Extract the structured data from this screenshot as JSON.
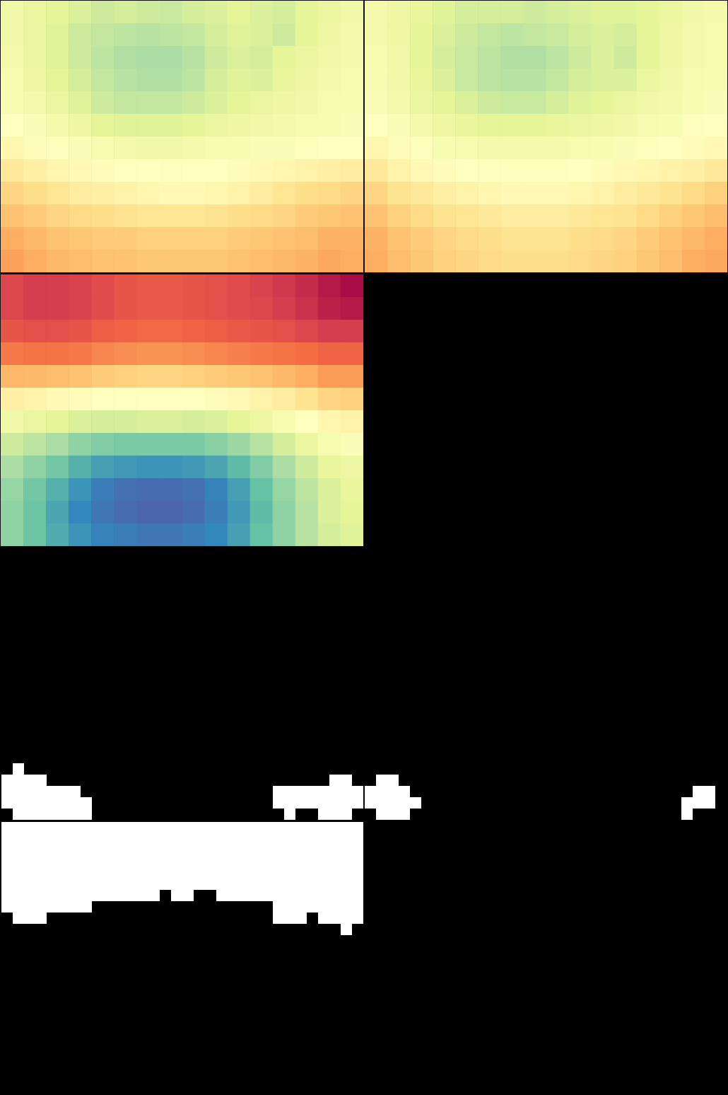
{
  "chart_data": [
    {
      "type": "heatmap",
      "tick_labels": false,
      "color_range": [
        0,
        1
      ],
      "cells": [
        [
          0.56,
          0.58,
          0.6,
          0.62,
          0.64,
          0.63,
          0.64,
          0.65,
          0.63,
          0.62,
          0.6,
          0.62,
          0.63,
          0.6,
          0.58,
          0.56
        ],
        [
          0.56,
          0.58,
          0.61,
          0.64,
          0.66,
          0.67,
          0.68,
          0.67,
          0.66,
          0.63,
          0.61,
          0.62,
          0.64,
          0.6,
          0.57,
          0.55
        ],
        [
          0.55,
          0.58,
          0.61,
          0.64,
          0.67,
          0.69,
          0.7,
          0.7,
          0.68,
          0.64,
          0.62,
          0.63,
          0.6,
          0.58,
          0.56,
          0.55
        ],
        [
          0.54,
          0.57,
          0.6,
          0.63,
          0.66,
          0.68,
          0.69,
          0.69,
          0.67,
          0.63,
          0.61,
          0.62,
          0.59,
          0.57,
          0.55,
          0.54
        ],
        [
          0.53,
          0.55,
          0.58,
          0.61,
          0.64,
          0.66,
          0.66,
          0.66,
          0.64,
          0.62,
          0.6,
          0.58,
          0.57,
          0.56,
          0.54,
          0.53
        ],
        [
          0.5,
          0.52,
          0.55,
          0.57,
          0.6,
          0.61,
          0.61,
          0.61,
          0.6,
          0.58,
          0.57,
          0.56,
          0.55,
          0.54,
          0.53,
          0.52
        ],
        [
          0.47,
          0.49,
          0.51,
          0.52,
          0.54,
          0.55,
          0.56,
          0.56,
          0.55,
          0.54,
          0.53,
          0.52,
          0.52,
          0.51,
          0.5,
          0.5
        ],
        [
          0.43,
          0.45,
          0.47,
          0.48,
          0.49,
          0.5,
          0.5,
          0.51,
          0.5,
          0.5,
          0.49,
          0.48,
          0.47,
          0.46,
          0.45,
          0.44
        ],
        [
          0.38,
          0.4,
          0.42,
          0.44,
          0.45,
          0.46,
          0.47,
          0.48,
          0.48,
          0.47,
          0.46,
          0.44,
          0.42,
          0.4,
          0.39,
          0.38
        ],
        [
          0.34,
          0.36,
          0.38,
          0.39,
          0.4,
          0.41,
          0.42,
          0.42,
          0.42,
          0.41,
          0.4,
          0.39,
          0.38,
          0.36,
          0.35,
          0.34
        ],
        [
          0.3,
          0.32,
          0.34,
          0.35,
          0.36,
          0.36,
          0.37,
          0.37,
          0.37,
          0.37,
          0.36,
          0.35,
          0.34,
          0.33,
          0.31,
          0.31
        ],
        [
          0.28,
          0.3,
          0.32,
          0.33,
          0.34,
          0.34,
          0.35,
          0.35,
          0.35,
          0.35,
          0.34,
          0.33,
          0.32,
          0.31,
          0.29,
          0.3
        ]
      ]
    },
    {
      "type": "heatmap",
      "tick_labels": false,
      "color_range": [
        0,
        1
      ],
      "cells": [
        [
          0.55,
          0.57,
          0.59,
          0.61,
          0.63,
          0.63,
          0.63,
          0.64,
          0.63,
          0.62,
          0.61,
          0.61,
          0.6,
          0.58,
          0.56,
          0.55
        ],
        [
          0.55,
          0.57,
          0.6,
          0.62,
          0.64,
          0.66,
          0.67,
          0.66,
          0.65,
          0.63,
          0.62,
          0.63,
          0.6,
          0.57,
          0.55,
          0.54
        ],
        [
          0.54,
          0.56,
          0.6,
          0.63,
          0.65,
          0.67,
          0.69,
          0.69,
          0.67,
          0.64,
          0.62,
          0.64,
          0.6,
          0.57,
          0.55,
          0.54
        ],
        [
          0.53,
          0.56,
          0.59,
          0.62,
          0.65,
          0.67,
          0.68,
          0.68,
          0.66,
          0.63,
          0.62,
          0.62,
          0.58,
          0.56,
          0.54,
          0.53
        ],
        [
          0.52,
          0.55,
          0.58,
          0.6,
          0.62,
          0.64,
          0.65,
          0.65,
          0.63,
          0.61,
          0.6,
          0.58,
          0.56,
          0.55,
          0.53,
          0.52
        ],
        [
          0.5,
          0.52,
          0.55,
          0.57,
          0.59,
          0.6,
          0.6,
          0.6,
          0.59,
          0.58,
          0.57,
          0.56,
          0.54,
          0.53,
          0.51,
          0.5
        ],
        [
          0.47,
          0.49,
          0.51,
          0.53,
          0.54,
          0.55,
          0.55,
          0.55,
          0.55,
          0.54,
          0.53,
          0.52,
          0.51,
          0.5,
          0.49,
          0.48
        ],
        [
          0.43,
          0.46,
          0.48,
          0.49,
          0.5,
          0.51,
          0.51,
          0.51,
          0.51,
          0.5,
          0.49,
          0.48,
          0.47,
          0.46,
          0.45,
          0.43
        ],
        [
          0.38,
          0.41,
          0.43,
          0.45,
          0.46,
          0.47,
          0.48,
          0.48,
          0.48,
          0.47,
          0.46,
          0.44,
          0.43,
          0.41,
          0.39,
          0.37
        ],
        [
          0.34,
          0.37,
          0.39,
          0.41,
          0.42,
          0.43,
          0.44,
          0.44,
          0.44,
          0.43,
          0.42,
          0.41,
          0.39,
          0.37,
          0.35,
          0.33
        ],
        [
          0.31,
          0.34,
          0.36,
          0.38,
          0.39,
          0.4,
          0.41,
          0.41,
          0.41,
          0.4,
          0.39,
          0.38,
          0.36,
          0.34,
          0.32,
          0.3
        ],
        [
          0.3,
          0.33,
          0.35,
          0.37,
          0.38,
          0.39,
          0.4,
          0.4,
          0.4,
          0.39,
          0.38,
          0.37,
          0.35,
          0.33,
          0.3,
          0.29
        ]
      ]
    },
    {
      "type": "heatmap",
      "tick_labels": false,
      "color_range": [
        0,
        1
      ],
      "cells": [
        [
          0.12,
          0.1,
          0.1,
          0.11,
          0.13,
          0.15,
          0.16,
          0.16,
          0.15,
          0.14,
          0.13,
          0.11,
          0.09,
          0.07,
          0.04,
          0.02
        ],
        [
          0.12,
          0.1,
          0.1,
          0.11,
          0.13,
          0.15,
          0.16,
          0.16,
          0.15,
          0.14,
          0.13,
          0.12,
          0.1,
          0.08,
          0.05,
          0.04
        ],
        [
          0.15,
          0.14,
          0.14,
          0.15,
          0.17,
          0.18,
          0.19,
          0.19,
          0.18,
          0.17,
          0.16,
          0.15,
          0.14,
          0.12,
          0.1,
          0.1
        ],
        [
          0.22,
          0.21,
          0.21,
          0.22,
          0.24,
          0.25,
          0.26,
          0.26,
          0.25,
          0.24,
          0.23,
          0.22,
          0.21,
          0.2,
          0.18,
          0.18
        ],
        [
          0.32,
          0.32,
          0.33,
          0.34,
          0.36,
          0.37,
          0.38,
          0.38,
          0.37,
          0.36,
          0.35,
          0.34,
          0.32,
          0.3,
          0.27,
          0.27
        ],
        [
          0.45,
          0.46,
          0.48,
          0.49,
          0.5,
          0.5,
          0.5,
          0.5,
          0.5,
          0.49,
          0.48,
          0.46,
          0.44,
          0.41,
          0.38,
          0.37
        ],
        [
          0.56,
          0.58,
          0.6,
          0.62,
          0.63,
          0.63,
          0.62,
          0.62,
          0.63,
          0.62,
          0.6,
          0.57,
          0.54,
          0.5,
          0.47,
          0.46
        ],
        [
          0.64,
          0.67,
          0.7,
          0.74,
          0.76,
          0.77,
          0.77,
          0.77,
          0.77,
          0.75,
          0.72,
          0.68,
          0.63,
          0.58,
          0.54,
          0.52
        ],
        [
          0.7,
          0.74,
          0.78,
          0.83,
          0.86,
          0.87,
          0.88,
          0.88,
          0.87,
          0.85,
          0.81,
          0.76,
          0.7,
          0.64,
          0.59,
          0.57
        ],
        [
          0.73,
          0.78,
          0.83,
          0.88,
          0.92,
          0.94,
          0.95,
          0.95,
          0.94,
          0.91,
          0.86,
          0.8,
          0.73,
          0.67,
          0.62,
          0.59
        ],
        [
          0.74,
          0.79,
          0.85,
          0.9,
          0.93,
          0.95,
          0.96,
          0.96,
          0.95,
          0.92,
          0.87,
          0.81,
          0.74,
          0.68,
          0.62,
          0.6
        ],
        [
          0.74,
          0.79,
          0.84,
          0.88,
          0.91,
          0.92,
          0.93,
          0.93,
          0.92,
          0.9,
          0.86,
          0.8,
          0.74,
          0.68,
          0.63,
          0.61
        ]
      ]
    },
    {
      "type": "mask",
      "tick_labels": false,
      "runs": [
        [
          19,
          1,
          1
        ],
        [
          20,
          0,
          3
        ],
        [
          20,
          29,
          30
        ],
        [
          21,
          0,
          6
        ],
        [
          21,
          24,
          31
        ],
        [
          22,
          0,
          7
        ],
        [
          22,
          24,
          31
        ],
        [
          23,
          1,
          7
        ],
        [
          23,
          25,
          25
        ],
        [
          23,
          28,
          30
        ]
      ]
    },
    {
      "type": "mask",
      "tick_labels": false,
      "runs": [
        [
          20,
          1,
          2
        ],
        [
          21,
          0,
          3
        ],
        [
          21,
          29,
          30
        ],
        [
          22,
          0,
          4
        ],
        [
          22,
          28,
          30
        ],
        [
          23,
          1,
          3
        ],
        [
          23,
          28,
          28
        ]
      ]
    },
    {
      "type": "mask",
      "tick_labels": false,
      "runs": [
        [
          0,
          0,
          31
        ],
        [
          1,
          0,
          31
        ],
        [
          2,
          0,
          31
        ],
        [
          3,
          0,
          31
        ],
        [
          4,
          0,
          31
        ],
        [
          5,
          0,
          31
        ],
        [
          6,
          0,
          13
        ],
        [
          6,
          15,
          16
        ],
        [
          6,
          19,
          31
        ],
        [
          7,
          0,
          7
        ],
        [
          7,
          24,
          31
        ],
        [
          8,
          1,
          3
        ],
        [
          8,
          24,
          26
        ],
        [
          8,
          28,
          31
        ],
        [
          9,
          30,
          30
        ]
      ]
    },
    {
      "type": "mask",
      "tick_labels": false,
      "runs": []
    }
  ]
}
